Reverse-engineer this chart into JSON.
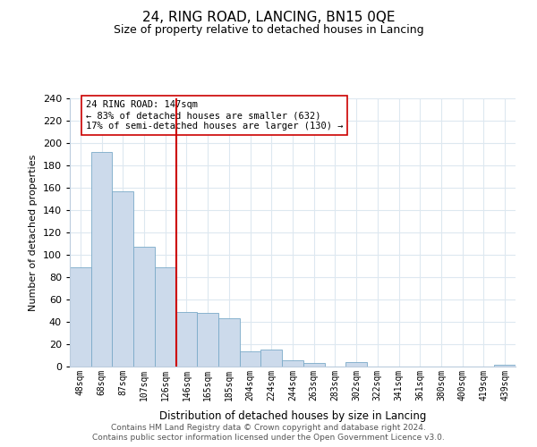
{
  "title": "24, RING ROAD, LANCING, BN15 0QE",
  "subtitle": "Size of property relative to detached houses in Lancing",
  "xlabel": "Distribution of detached houses by size in Lancing",
  "ylabel": "Number of detached properties",
  "bin_labels": [
    "48sqm",
    "68sqm",
    "87sqm",
    "107sqm",
    "126sqm",
    "146sqm",
    "165sqm",
    "185sqm",
    "204sqm",
    "224sqm",
    "244sqm",
    "263sqm",
    "283sqm",
    "302sqm",
    "322sqm",
    "341sqm",
    "361sqm",
    "380sqm",
    "400sqm",
    "419sqm",
    "439sqm"
  ],
  "bar_values": [
    89,
    192,
    157,
    107,
    89,
    49,
    48,
    43,
    14,
    15,
    6,
    3,
    0,
    4,
    0,
    0,
    0,
    0,
    0,
    0,
    2
  ],
  "bar_color": "#ccdaeb",
  "bar_edgecolor": "#7aaac8",
  "vline_index": 5,
  "vline_color": "#cc0000",
  "annotation_text": "24 RING ROAD: 147sqm\n← 83% of detached houses are smaller (632)\n17% of semi-detached houses are larger (130) →",
  "annotation_box_edgecolor": "#cc0000",
  "annotation_box_facecolor": "#ffffff",
  "ylim": [
    0,
    240
  ],
  "yticks": [
    0,
    20,
    40,
    60,
    80,
    100,
    120,
    140,
    160,
    180,
    200,
    220,
    240
  ],
  "footer_line1": "Contains HM Land Registry data © Crown copyright and database right 2024.",
  "footer_line2": "Contains public sector information licensed under the Open Government Licence v3.0.",
  "bg_color": "#ffffff",
  "grid_color": "#dde8f0"
}
